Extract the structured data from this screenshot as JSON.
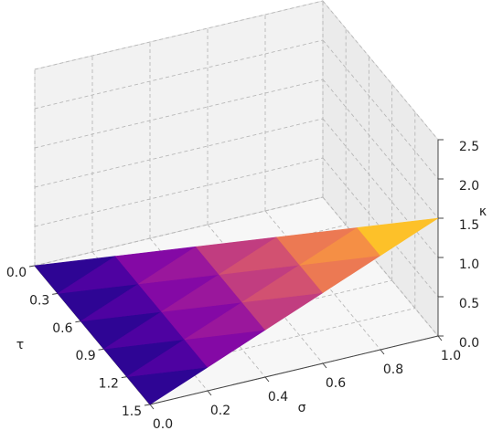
{
  "chart_data": {
    "type": "surface3d",
    "x_label": "σ",
    "y_label": "τ",
    "z_label": "κ",
    "x": [
      0,
      0.2,
      0.4,
      0.6,
      0.8,
      1.0
    ],
    "y": [
      0,
      0.3,
      0.6,
      0.9,
      1.2,
      1.5
    ],
    "z": [
      [
        0,
        null,
        null,
        null,
        null,
        null
      ],
      [
        0,
        0.3,
        null,
        null,
        null,
        null
      ],
      [
        0,
        0.3,
        0.6,
        null,
        null,
        null
      ],
      [
        0,
        0.3,
        0.6,
        0.9,
        null,
        null
      ],
      [
        0,
        0.3,
        0.6,
        0.9,
        1.2,
        null
      ],
      [
        0,
        0.3,
        0.6,
        0.9,
        1.2,
        1.5
      ]
    ],
    "xlim": [
      0,
      1
    ],
    "ylim": [
      0,
      1.5
    ],
    "zlim": [
      0,
      2.5
    ],
    "xticks": [
      {
        "value": 0,
        "label": "0.0"
      },
      0.2,
      0.4,
      0.6,
      0.8,
      {
        "value": 1,
        "label": "1.0"
      }
    ],
    "yticks": [
      {
        "value": 0,
        "label": "0.0"
      },
      0.3,
      0.6,
      0.9,
      1.2,
      1.5
    ],
    "zticks": [
      {
        "value": 0,
        "label": "0.0"
      },
      0.5,
      {
        "value": 1,
        "label": "1.0"
      },
      1.5,
      {
        "value": 2,
        "label": "2.0"
      },
      2.5
    ],
    "clim": [
      0,
      1.5
    ],
    "colormap": [
      "#0d0887",
      "#5302a3",
      "#8b0aa5",
      "#b83289",
      "#db5c68",
      "#f48849",
      "#febd2a",
      "#f0f921"
    ],
    "grid": true
  }
}
